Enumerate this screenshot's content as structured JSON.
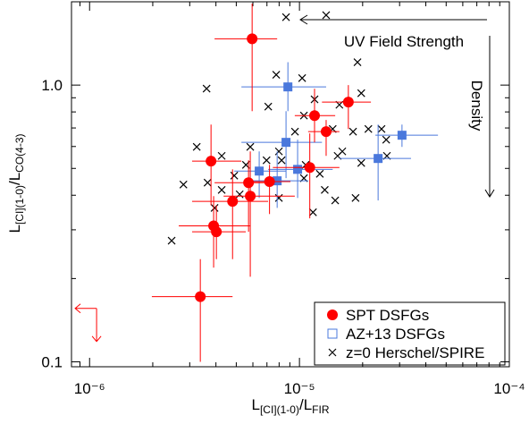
{
  "chart_data": {
    "type": "scatter",
    "x_label": [
      "L",
      "[CI](1-0)",
      "/L",
      "FIR"
    ],
    "y_label": [
      "L",
      "[CI](1-0)",
      "/L",
      "CO(4-3)"
    ],
    "log_x": true,
    "log_y": true,
    "xlim": [
      8.2e-07,
      0.0001
    ],
    "ylim": [
      0.096,
      2.0
    ],
    "xticks": [
      {
        "value": 1e-06,
        "label": "10⁻⁶"
      },
      {
        "value": 1e-05,
        "label": "10⁻⁵"
      },
      {
        "value": 0.0001,
        "label": "10⁻⁴"
      }
    ],
    "yticks": [
      0.1,
      {
        "value": 1,
        "label": "1.0"
      }
    ],
    "xminor": [
      9e-07,
      2e-06,
      3e-06,
      4e-06,
      5e-06,
      6e-06,
      7e-06,
      8e-06,
      9e-06,
      2e-05,
      3e-05,
      4e-05,
      5e-05,
      6e-05,
      7e-05,
      8e-05,
      9e-05
    ],
    "yminor": [
      0.2,
      0.3,
      0.4,
      0.5,
      0.6,
      0.7,
      0.8,
      0.9,
      2.0
    ],
    "legend": "lower right",
    "annotations": [
      "UV Field Strength",
      "Density"
    ],
    "series": [
      {
        "name": "SPT DSFGs",
        "marker": "circle",
        "color": "#ff0000",
        "x": [
          5.95e-06,
          1.71e-05,
          1.18e-05,
          1.34e-05,
          3.79e-06,
          1.12e-05,
          5.72e-06,
          4.8e-06,
          5.83e-06,
          3.9e-06,
          4.02e-06,
          3.37e-06,
          7.2e-06
        ],
        "y": [
          1.47,
          0.868,
          0.776,
          0.679,
          0.531,
          0.504,
          0.444,
          0.38,
          0.397,
          0.31,
          0.295,
          0.172,
          0.448
        ],
        "xlow": [
          3.94e-06,
          1.28e-05,
          9.5e-06,
          1.1e-05,
          3.08e-06,
          7.47e-06,
          3.94e-06,
          3.08e-06,
          4.35e-06,
          2.66e-06,
          3.08e-06,
          1.98e-06,
          5.83e-06
        ],
        "xhigh": [
          7.83e-06,
          2.19e-05,
          1.48e-05,
          1.55e-05,
          5.29e-06,
          1.55e-05,
          7.09e-06,
          7.09e-06,
          9.5e-06,
          5.83e-06,
          5.55e-06,
          4.8e-06,
          9.06e-06
        ],
        "ylow": [
          0.805,
          0.694,
          0.621,
          0.555,
          0.368,
          0.33,
          0.295,
          0.235,
          0.203,
          0.219,
          0.235,
          0.1,
          0.342
        ],
        "yhigh": [
          1.97,
          1.0,
          0.97,
          0.748,
          0.72,
          0.669,
          0.535,
          0.496,
          0.576,
          0.397,
          0.368,
          0.235,
          0.515
        ],
        "upper_limits": {
          "x": [
            1.08e-06
          ],
          "y": [
            0.156
          ]
        }
      },
      {
        "name": "AZ+13 DSFGs",
        "marker": "square",
        "color": "#4a78dc",
        "x": [
          8.81e-06,
          8.63e-06,
          3.08e-05,
          2.37e-05,
          6.43e-06,
          7.83e-06,
          9.8e-06
        ],
        "y": [
          0.985,
          0.621,
          0.659,
          0.543,
          0.489,
          0.451,
          0.496
        ],
        "xlow": [
          5.29e-06,
          5.29e-06,
          2.3e-05,
          1.55e-05,
          4.89e-06,
          5.56e-06,
          7.1e-06
        ],
        "xhigh": [
          1.34e-05,
          1.28e-05,
          4.57e-05,
          3.4e-05,
          8.63e-06,
          1.1e-05,
          1.44e-05
        ],
        "ylow": [
          0.805,
          0.461,
          0.598,
          0.383,
          0.391,
          0.36,
          0.391
        ],
        "yhigh": [
          1.21,
          0.805,
          0.72,
          0.72,
          0.576,
          0.576,
          0.635
        ]
      },
      {
        "name": "z=0 Herschel/SPIRE",
        "marker": "cross",
        "color": "#000000",
        "x": [
          8.63e-06,
          1.34e-05,
          3.61e-06,
          7.75e-06,
          1.03e-05,
          1.89e-05,
          1.97e-05,
          1.18e-05,
          1.05e-05,
          1.55e-05,
          1.44e-05,
          1.8e-05,
          2.13e-05,
          2.46e-05,
          2.59e-05,
          7.1e-06,
          9.52e-06,
          7.98e-06,
          5.83e-06,
          4.26e-06,
          3.24e-06,
          5.56e-06,
          6.97e-06,
          8.22e-06,
          1.05e-05,
          1.25e-05,
          1.52e-05,
          1.6e-05,
          1.97e-05,
          2.61e-05,
          2.8e-06,
          3.65e-06,
          4.89e-06,
          4.26e-06,
          1.07e-05,
          1.32e-05,
          1.85e-05,
          7.98e-06,
          5.19e-06,
          3.94e-06,
          2.46e-06,
          1.16e-05,
          1.48e-05
        ],
        "y": [
          1.76,
          1.79,
          0.971,
          1.09,
          1.06,
          1.21,
          0.935,
          0.888,
          0.776,
          0.849,
          0.694,
          0.679,
          0.694,
          0.694,
          0.635,
          0.836,
          0.679,
          0.576,
          0.598,
          0.555,
          0.598,
          0.515,
          0.535,
          0.535,
          0.461,
          0.478,
          0.555,
          0.576,
          0.523,
          0.555,
          0.437,
          0.444,
          0.471,
          0.418,
          0.515,
          0.418,
          0.391,
          0.391,
          0.403,
          0.36,
          0.274,
          0.347,
          0.383
        ]
      }
    ]
  }
}
